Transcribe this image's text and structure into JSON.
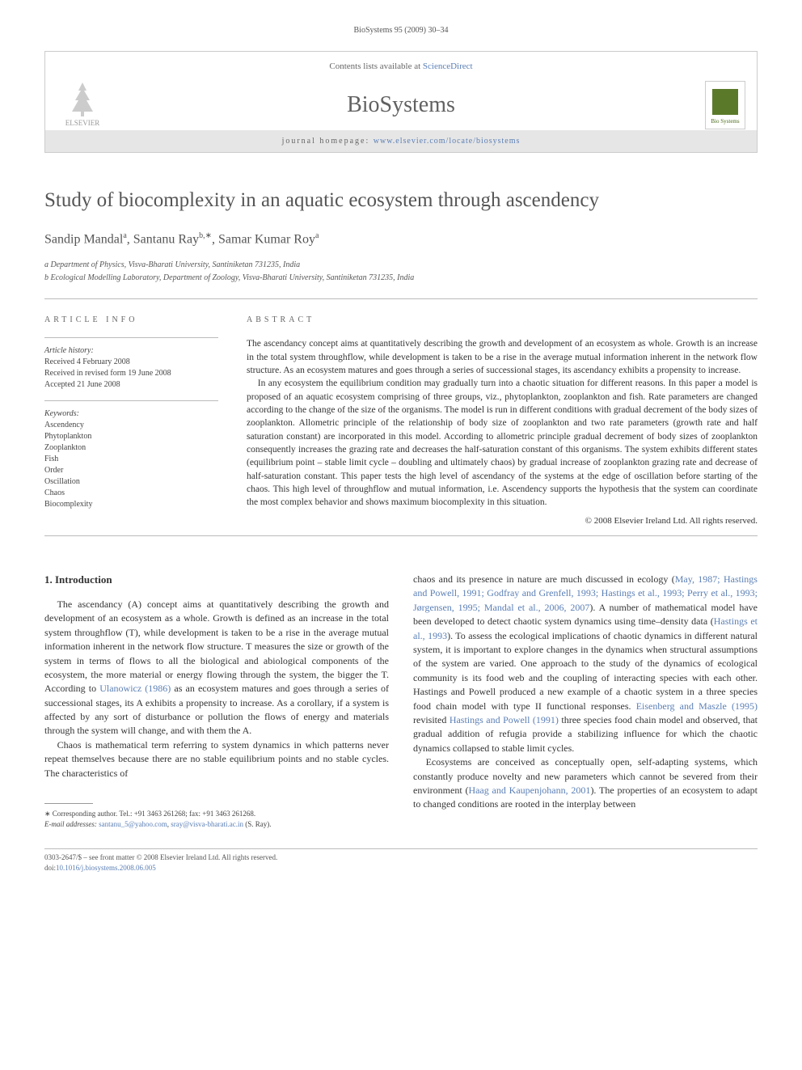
{
  "header": {
    "running_head": "BioSystems 95 (2009) 30–34"
  },
  "journal_box": {
    "contents_prefix": "Contents lists available at ",
    "contents_link": "ScienceDirect",
    "journal_name": "BioSystems",
    "homepage_label": "journal homepage: ",
    "homepage_url": "www.elsevier.com/locate/biosystems",
    "publisher_name": "ELSEVIER",
    "cover_label": "Bio Systems"
  },
  "article": {
    "title": "Study of biocomplexity in an aquatic ecosystem through ascendency",
    "authors_html": "Sandip Mandal<sup>a</sup>, Santanu Ray<sup>b,∗</sup>, Samar Kumar Roy<sup>a</sup>",
    "affiliations": [
      "a Department of Physics, Visva-Bharati University, Santiniketan 731235, India",
      "b Ecological Modelling Laboratory, Department of Zoology, Visva-Bharati University, Santiniketan 731235, India"
    ]
  },
  "info": {
    "label": "ARTICLE INFO",
    "history_heading": "Article history:",
    "history": [
      "Received 4 February 2008",
      "Received in revised form 19 June 2008",
      "Accepted 21 June 2008"
    ],
    "keywords_heading": "Keywords:",
    "keywords": [
      "Ascendency",
      "Phytoplankton",
      "Zooplankton",
      "Fish",
      "Order",
      "Oscillation",
      "Chaos",
      "Biocomplexity"
    ]
  },
  "abstract": {
    "label": "ABSTRACT",
    "para1": "The ascendancy concept aims at quantitatively describing the growth and development of an ecosystem as whole. Growth is an increase in the total system throughflow, while development is taken to be a rise in the average mutual information inherent in the network flow structure. As an ecosystem matures and goes through a series of successional stages, its ascendancy exhibits a propensity to increase.",
    "para2": "In any ecosystem the equilibrium condition may gradually turn into a chaotic situation for different reasons. In this paper a model is proposed of an aquatic ecosystem comprising of three groups, viz., phytoplankton, zooplankton and fish. Rate parameters are changed according to the change of the size of the organisms. The model is run in different conditions with gradual decrement of the body sizes of zooplankton. Allometric principle of the relationship of body size of zooplankton and two rate parameters (growth rate and half saturation constant) are incorporated in this model. According to allometric principle gradual decrement of body sizes of zooplankton consequently increases the grazing rate and decreases the half-saturation constant of this organisms. The system exhibits different states (equilibrium point – stable limit cycle – doubling and ultimately chaos) by gradual increase of zooplankton grazing rate and decrease of half-saturation constant. This paper tests the high level of ascendancy of the systems at the edge of oscillation before starting of the chaos. This high level of throughflow and mutual information, i.e. Ascendency supports the hypothesis that the system can coordinate the most complex behavior and shows maximum biocomplexity in this situation.",
    "copyright": "© 2008 Elsevier Ireland Ltd. All rights reserved."
  },
  "body": {
    "section_heading": "1.  Introduction",
    "col1_p1": "The ascendancy (A) concept aims at quantitatively describing the growth and development of an ecosystem as a whole. Growth is defined as an increase in the total system throughflow (T), while development is taken to be a rise in the average mutual information inherent in the network flow structure. T measures the size or growth of the system in terms of flows to all the biological and abiological components of the ecosystem, the more material or energy flowing through the system, the bigger the T. According to ",
    "col1_p1_ref": "Ulanowicz (1986)",
    "col1_p1_tail": " as an ecosystem matures and goes through a series of successional stages, its A exhibits a propensity to increase. As a corollary, if a system is affected by any sort of disturbance or pollution the flows of energy and materials through the system will change, and with them the A.",
    "col1_p2": "Chaos is mathematical term referring to system dynamics in which patterns never repeat themselves because there are no stable equilibrium points and no stable cycles. The characteristics of",
    "col2_p1_pre": "chaos and its presence in nature are much discussed in ecology (",
    "col2_p1_ref1": "May, 1987; Hastings and Powell, 1991; Godfray and Grenfell, 1993; Hastings et al., 1993; Perry et al., 1993; Jørgensen, 1995; Mandal et al., 2006, 2007",
    "col2_p1_mid1": "). A number of mathematical model have been developed to detect chaotic system dynamics using time–density data (",
    "col2_p1_ref2": "Hastings et al., 1993",
    "col2_p1_mid2": "). To assess the ecological implications of chaotic dynamics in different natural system, it is important to explore changes in the dynamics when structural assumptions of the system are varied. One approach to the study of the dynamics of ecological community is its food web and the coupling of interacting species with each other. Hastings and Powell produced a new example of a chaotic system in a three species food chain model with type II functional responses. ",
    "col2_p1_ref3": "Eisenberg and Maszle (1995)",
    "col2_p1_mid3": " revisited ",
    "col2_p1_ref4": "Hastings and Powell (1991)",
    "col2_p1_tail": " three species food chain model and observed, that gradual addition of refugia provide a stabilizing influence for which the chaotic dynamics collapsed to stable limit cycles.",
    "col2_p2_pre": "Ecosystems are conceived as conceptually open, self-adapting systems, which constantly produce novelty and new parameters which cannot be severed from their environment (",
    "col2_p2_ref": "Haag and Kaupenjohann, 2001",
    "col2_p2_tail": "). The properties of an ecosystem to adapt to changed conditions are rooted in the interplay between"
  },
  "footnote": {
    "corresponding": "∗ Corresponding author. Tel.: +91 3463 261268; fax: +91 3463 261268.",
    "email_label": "E-mail addresses: ",
    "email1": "santanu_5@yahoo.com",
    "email_sep": ", ",
    "email2": "sray@visva-bharati.ac.in",
    "email_tail": " (S. Ray)."
  },
  "footer": {
    "line1": "0303-2647/$ – see front matter © 2008 Elsevier Ireland Ltd. All rights reserved.",
    "doi_label": "doi:",
    "doi": "10.1016/j.biosystems.2008.06.005"
  }
}
